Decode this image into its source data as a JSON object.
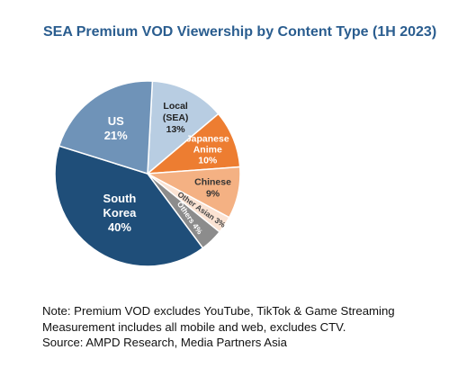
{
  "title": "SEA Premium VOD Viewership by Content Type (1H 2023)",
  "chart_data": {
    "type": "pie",
    "title": "SEA Premium VOD Viewership by Content Type (1H 2023)",
    "slices": [
      {
        "name": "Local (SEA)",
        "label_lines": [
          "Local",
          "(SEA)",
          "13%"
        ],
        "value": 13,
        "color": "#b8cde2",
        "text_color": "#222222"
      },
      {
        "name": "Japanese Anime",
        "label_lines": [
          "Japanese",
          "Anime",
          "10%"
        ],
        "value": 10,
        "color": "#ed7d31",
        "text_color": "#ffffff"
      },
      {
        "name": "Chinese",
        "label_lines": [
          "Chinese",
          "9%"
        ],
        "value": 9,
        "color": "#f4b183",
        "text_color": "#333333"
      },
      {
        "name": "Other Asian",
        "label_lines": [
          "Other Asian 3%"
        ],
        "value": 3,
        "color": "#fbe3d3",
        "text_color": "#444444"
      },
      {
        "name": "Others",
        "label_lines": [
          "Others 4%"
        ],
        "value": 4,
        "color": "#8c8c8c",
        "text_color": "#ffffff"
      },
      {
        "name": "South Korea",
        "label_lines": [
          "South",
          "Korea",
          "40%"
        ],
        "value": 40,
        "color": "#1f4e79",
        "text_color": "#ffffff"
      },
      {
        "name": "US",
        "label_lines": [
          "US",
          "21%"
        ],
        "value": 21,
        "color": "#6f93b8",
        "text_color": "#ffffff"
      }
    ]
  },
  "notes": [
    "Note: Premium VOD excludes YouTube, TikTok & Game Streaming",
    "Measurement includes all mobile and web, excludes CTV.",
    "Source: AMPD Research, Media Partners Asia"
  ]
}
